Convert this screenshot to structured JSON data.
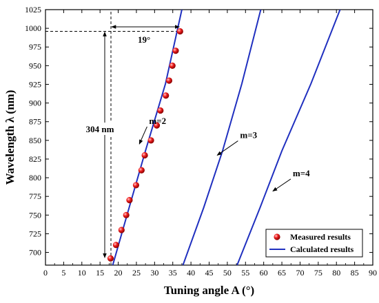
{
  "chart_data": {
    "type": "line",
    "title": "",
    "xlabel": "Tuning angle A (°)",
    "ylabel": "Wavelength λ (nm)",
    "xlim": [
      0,
      90
    ],
    "ylim": [
      683,
      1025
    ],
    "xticks": [
      0,
      5,
      10,
      15,
      20,
      25,
      30,
      35,
      40,
      45,
      50,
      55,
      60,
      65,
      70,
      75,
      80,
      85,
      90
    ],
    "yticks": [
      700,
      725,
      750,
      775,
      800,
      825,
      850,
      875,
      900,
      925,
      950,
      975,
      1000,
      1025
    ],
    "grid": false,
    "legend_position": "bottom-right",
    "series": [
      {
        "name": "Measured results",
        "kind": "scatter",
        "color": "#e41010",
        "points": [
          [
            17.9,
            692
          ],
          [
            19.4,
            710
          ],
          [
            20.9,
            730
          ],
          [
            22.2,
            750
          ],
          [
            23.1,
            770
          ],
          [
            24.9,
            790
          ],
          [
            26.4,
            810
          ],
          [
            27.3,
            830
          ],
          [
            29.0,
            850
          ],
          [
            30.6,
            870
          ],
          [
            31.6,
            890
          ],
          [
            33.1,
            910
          ],
          [
            34.0,
            930
          ],
          [
            34.9,
            950
          ],
          [
            35.8,
            970
          ],
          [
            37.0,
            996
          ]
        ]
      },
      {
        "name": "Calculated results",
        "kind": "line",
        "color": "#1f2fbf",
        "lines": [
          {
            "label": "m=2",
            "points": [
              [
                18.5,
                683
              ],
              [
                23.0,
                760
              ],
              [
                27.5,
                836
              ],
              [
                33.0,
                926
              ],
              [
                37.5,
                1025
              ]
            ]
          },
          {
            "label": "m=3",
            "points": [
              [
                37.8,
                683
              ],
              [
                43.5,
                760
              ],
              [
                48.7,
                836
              ],
              [
                54.0,
                926
              ],
              [
                59.2,
                1025
              ]
            ]
          },
          {
            "label": "m=4",
            "points": [
              [
                52.7,
                683
              ],
              [
                59.0,
                760
              ],
              [
                65.0,
                836
              ],
              [
                73.0,
                926
              ],
              [
                81.0,
                1025
              ]
            ]
          }
        ]
      }
    ],
    "annotations": {
      "span_label": "304 nm",
      "span_range": [
        692,
        996
      ],
      "angle_label": "19°",
      "angle_range": [
        18,
        37
      ],
      "ref_angle": 18,
      "ref_wavelength": 996,
      "curve_labels": [
        {
          "text": "m=2",
          "x": 28.5,
          "y": 872,
          "target": [
            25.8,
            845
          ]
        },
        {
          "text": "m=3",
          "x": 53.5,
          "y": 853,
          "target": [
            47.2,
            830
          ]
        },
        {
          "text": "m=4",
          "x": 68.0,
          "y": 802,
          "target": [
            62.5,
            782
          ]
        }
      ]
    }
  }
}
